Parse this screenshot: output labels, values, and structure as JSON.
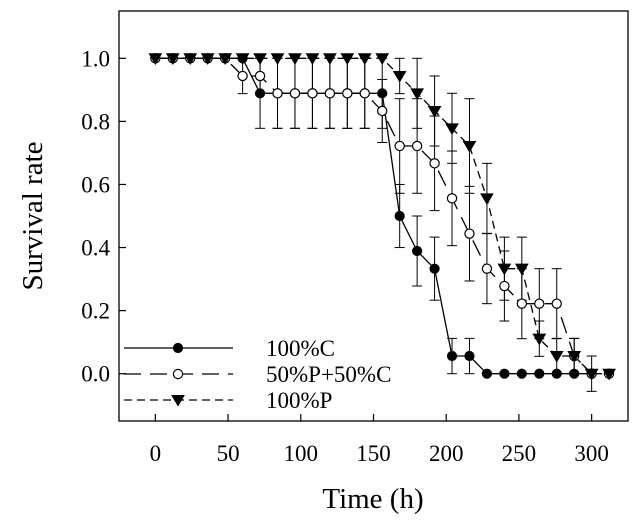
{
  "chart_data": {
    "type": "line",
    "title": "",
    "xlabel": "Time (h)",
    "ylabel": "Survival rate",
    "xlim": [
      -25,
      325
    ],
    "ylim": [
      -0.15,
      1.15
    ],
    "xticks": [
      0,
      50,
      100,
      150,
      200,
      250,
      300
    ],
    "xtick_labels": [
      "0",
      "50",
      "100",
      "150",
      "200",
      "250",
      "300"
    ],
    "yticks": [
      0.0,
      0.2,
      0.4,
      0.6,
      0.8,
      1.0
    ],
    "ytick_labels": [
      "0.0",
      "0.2",
      "0.4",
      "0.6",
      "0.8",
      "1.0"
    ],
    "grid": false,
    "legend_position": "bottom-left",
    "series": [
      {
        "name": "100%C",
        "line_style": "solid",
        "marker": "filled-circle",
        "color": "#000000",
        "x": [
          0,
          12,
          24,
          36,
          48,
          60,
          72,
          84,
          96,
          108,
          120,
          132,
          144,
          156,
          168,
          180,
          192,
          204,
          216,
          228,
          240,
          252,
          264,
          276,
          288,
          300
        ],
        "y": [
          1.0,
          1.0,
          1.0,
          1.0,
          1.0,
          1.0,
          0.889,
          0.889,
          0.889,
          0.889,
          0.889,
          0.889,
          0.889,
          0.889,
          0.5,
          0.389,
          0.333,
          0.056,
          0.056,
          0.0,
          0.0,
          0.0,
          0.0,
          0.0,
          0.0,
          0.0
        ],
        "err": [
          0,
          0,
          0,
          0,
          0,
          0,
          0.111,
          0.111,
          0.111,
          0.111,
          0.111,
          0.111,
          0.111,
          0.111,
          0.1,
          0.111,
          0.1,
          0.056,
          0.056,
          0,
          0,
          0,
          0,
          0,
          0,
          0
        ]
      },
      {
        "name": "50%P+50%C",
        "line_style": "long-dash",
        "marker": "open-circle",
        "color": "#000000",
        "x": [
          0,
          12,
          24,
          36,
          48,
          60,
          72,
          84,
          96,
          108,
          120,
          132,
          144,
          156,
          168,
          180,
          192,
          204,
          216,
          228,
          240,
          252,
          264,
          276,
          288,
          300,
          312
        ],
        "y": [
          1.0,
          1.0,
          1.0,
          1.0,
          1.0,
          0.944,
          0.944,
          0.889,
          0.889,
          0.889,
          0.889,
          0.889,
          0.889,
          0.833,
          0.722,
          0.722,
          0.667,
          0.556,
          0.444,
          0.333,
          0.278,
          0.222,
          0.222,
          0.222,
          0.056,
          0.0,
          0.0
        ],
        "err": [
          0,
          0,
          0,
          0,
          0,
          0.056,
          0.056,
          0.111,
          0.111,
          0.111,
          0.111,
          0.111,
          0.111,
          0.1,
          0.15,
          0.15,
          0.15,
          0.15,
          0.15,
          0.111,
          0.111,
          0.111,
          0.111,
          0.111,
          0.056,
          0.056,
          0
        ]
      },
      {
        "name": "100%P",
        "line_style": "short-dash",
        "marker": "filled-triangle-down",
        "color": "#000000",
        "x": [
          0,
          12,
          24,
          36,
          48,
          60,
          72,
          84,
          96,
          108,
          120,
          132,
          144,
          156,
          168,
          180,
          192,
          204,
          216,
          228,
          240,
          252,
          264,
          276,
          288,
          300,
          312
        ],
        "y": [
          1.0,
          1.0,
          1.0,
          1.0,
          1.0,
          1.0,
          1.0,
          1.0,
          1.0,
          1.0,
          1.0,
          1.0,
          1.0,
          1.0,
          0.944,
          0.889,
          0.833,
          0.778,
          0.722,
          0.556,
          0.333,
          0.333,
          0.111,
          0.056,
          0.056,
          0.0,
          0.0
        ],
        "err": [
          0,
          0,
          0,
          0,
          0,
          0,
          0,
          0,
          0,
          0,
          0,
          0,
          0,
          0,
          0.056,
          0.111,
          0.111,
          0.111,
          0.15,
          0.111,
          0.1,
          0.1,
          0.056,
          0.056,
          0.056,
          0,
          0
        ]
      }
    ]
  }
}
